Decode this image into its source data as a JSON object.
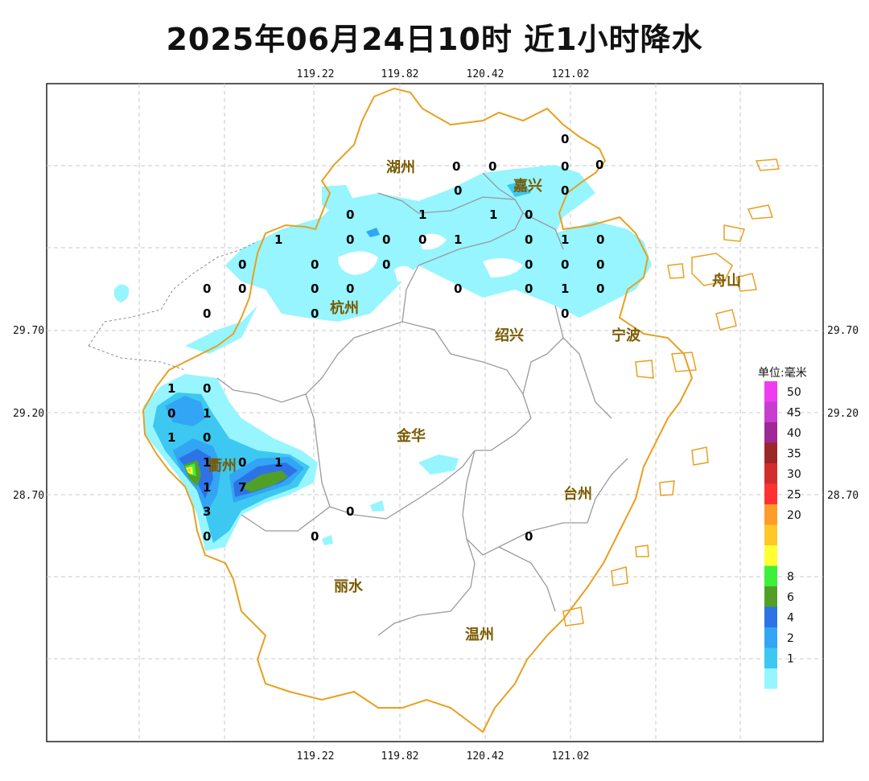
{
  "title": "2025年06月24日10时  近1小时降水",
  "axes": {
    "top_ticks": [
      "119.22",
      "119.82",
      "120.42",
      "121.02"
    ],
    "bottom_ticks": [
      "119.22",
      "119.82",
      "120.42",
      "121.02"
    ],
    "left_ticks": [
      "29.70",
      "29.20",
      "28.70"
    ],
    "right_ticks": [
      "29.70",
      "29.20",
      "28.70"
    ],
    "grid": true
  },
  "cities": [
    {
      "name": "湖州",
      "id": "huzhou"
    },
    {
      "name": "嘉兴",
      "id": "jiaxing"
    },
    {
      "name": "杭州",
      "id": "hangzhou"
    },
    {
      "name": "舟山",
      "id": "zhoushan"
    },
    {
      "name": "绍兴",
      "id": "shaoxing"
    },
    {
      "name": "宁波",
      "id": "ningbo"
    },
    {
      "name": "金华",
      "id": "jinhua"
    },
    {
      "name": "衢州",
      "id": "quzhou"
    },
    {
      "name": "台州",
      "id": "taizhou"
    },
    {
      "name": "丽水",
      "id": "lishui"
    },
    {
      "name": "温州",
      "id": "wenzhou"
    }
  ],
  "station_values": [
    "0",
    "0",
    "0",
    "0",
    "0",
    "0",
    "0",
    "1",
    "0",
    "0",
    "1",
    "1",
    "0",
    "0",
    "1",
    "0",
    "1",
    "0",
    "0",
    "0",
    "0",
    "0",
    "0",
    "0",
    "0",
    "0",
    "0",
    "0",
    "0",
    "0",
    "0",
    "0",
    "1",
    "0",
    "0",
    "0",
    "1",
    "0",
    "1",
    "0",
    "1",
    "1",
    "0",
    "1",
    "0",
    "7",
    "1",
    "3",
    "0",
    "0",
    "0",
    "0"
  ],
  "legend": {
    "title": "单位:毫米",
    "levels": [
      {
        "label": "50",
        "color": "#f03cf0"
      },
      {
        "label": "45",
        "color": "#c83cd2"
      },
      {
        "label": "40",
        "color": "#a02896"
      },
      {
        "label": "35",
        "color": "#9b2828"
      },
      {
        "label": "30",
        "color": "#d22d2d"
      },
      {
        "label": "25",
        "color": "#ff3232"
      },
      {
        "label": "20",
        "color": "#ff9b28"
      },
      {
        "label": "",
        "color": "#ffc828"
      },
      {
        "label": "",
        "color": "#ffff32"
      },
      {
        "label": "8",
        "color": "#3cf03c"
      },
      {
        "label": "6",
        "color": "#50a028"
      },
      {
        "label": "4",
        "color": "#2d73e6"
      },
      {
        "label": "2",
        "color": "#32a5f5"
      },
      {
        "label": "1",
        "color": "#3cc8f0"
      },
      {
        "label": "",
        "color": "#96f5ff"
      }
    ]
  },
  "colors": {
    "province_border": "#e8a020",
    "city_border": "#909090",
    "rain_light": "#96f5ff",
    "rain_1": "#3cc8f0",
    "rain_2": "#32a5f5",
    "rain_4": "#2d73e6",
    "rain_6": "#50a028",
    "rain_8": "#3cf03c",
    "rain_10": "#ffff32",
    "rain_15": "#ffc828"
  }
}
